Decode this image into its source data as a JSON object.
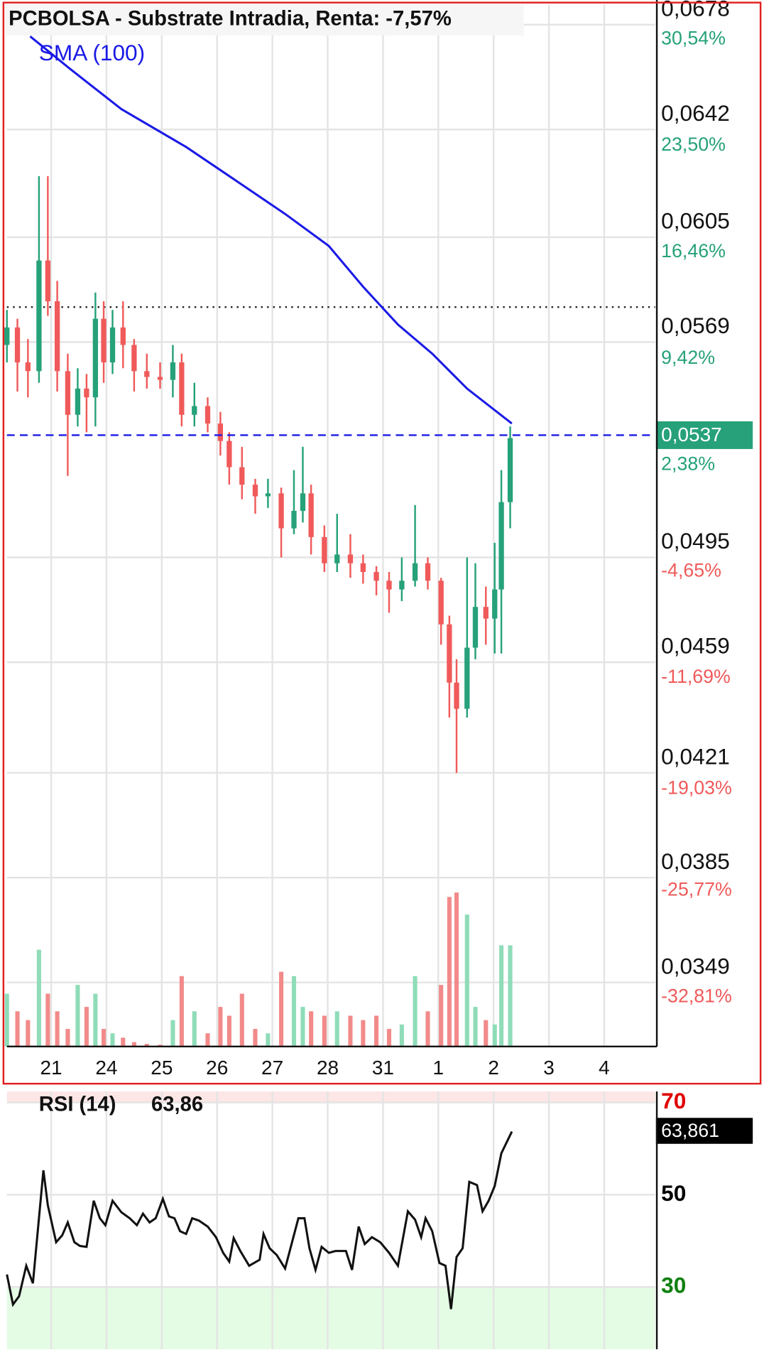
{
  "chart_data": [
    {
      "type": "candlestick",
      "title": "PCBOLSA - Substrate Intradia, Renta: -7,57%",
      "x": [
        -0.8,
        -0.61,
        -0.42,
        -0.22,
        -0.06,
        0.11,
        0.3,
        0.48,
        0.64,
        0.8,
        0.95,
        1.11,
        1.3,
        1.5,
        1.73,
        1.97,
        2.2,
        2.36,
        2.59,
        2.83,
        3.06,
        3.22,
        3.45,
        3.69,
        3.92,
        4.16,
        4.39,
        4.55,
        4.7,
        4.94,
        5.17,
        5.41,
        5.64,
        5.88,
        6.11,
        6.34,
        6.58,
        6.81,
        7.05,
        7.2,
        7.33,
        7.52,
        7.67,
        7.86,
        8.02,
        8.14,
        8.3
      ],
      "open": [
        0.0568,
        0.0574,
        0.0562,
        0.0559,
        0.0597,
        0.0583,
        0.0559,
        0.0544,
        0.0553,
        0.055,
        0.0577,
        0.0562,
        0.0574,
        0.0568,
        0.0559,
        0.0557,
        0.0556,
        0.0562,
        0.0544,
        0.0547,
        0.0541,
        0.0535,
        0.0526,
        0.052,
        0.0516,
        0.0517,
        0.0505,
        0.0511,
        0.0517,
        0.0502,
        0.0493,
        0.0496,
        0.0493,
        0.049,
        0.0487,
        0.0484,
        0.0487,
        0.0493,
        0.0487,
        0.0472,
        0.0452,
        0.0443,
        0.0464,
        0.0478,
        0.0474,
        0.0484,
        0.0514
      ],
      "high": [
        0.058,
        0.0577,
        0.057,
        0.0626,
        0.0626,
        0.059,
        0.0565,
        0.056,
        0.0558,
        0.0586,
        0.0583,
        0.058,
        0.0583,
        0.057,
        0.0565,
        0.0562,
        0.0568,
        0.0565,
        0.0555,
        0.055,
        0.0545,
        0.0538,
        0.0533,
        0.0522,
        0.0522,
        0.0519,
        0.0525,
        0.0533,
        0.052,
        0.0506,
        0.051,
        0.0503,
        0.0496,
        0.0492,
        0.049,
        0.0495,
        0.0513,
        0.0495,
        0.0488,
        0.0475,
        0.046,
        0.0495,
        0.0493,
        0.0485,
        0.05,
        0.0525,
        0.054
      ],
      "low": [
        0.0562,
        0.0552,
        0.055,
        0.0555,
        0.0578,
        0.0552,
        0.0523,
        0.054,
        0.0538,
        0.054,
        0.0555,
        0.0558,
        0.056,
        0.0552,
        0.0553,
        0.0553,
        0.055,
        0.054,
        0.054,
        0.0538,
        0.053,
        0.052,
        0.0515,
        0.051,
        0.0512,
        0.0495,
        0.0503,
        0.0507,
        0.0496,
        0.049,
        0.049,
        0.0488,
        0.0486,
        0.0482,
        0.0476,
        0.048,
        0.0485,
        0.0484,
        0.0465,
        0.044,
        0.0421,
        0.044,
        0.046,
        0.0465,
        0.0462,
        0.0462,
        0.0505
      ],
      "close": [
        0.0574,
        0.0562,
        0.0559,
        0.0597,
        0.0583,
        0.0559,
        0.0544,
        0.0553,
        0.055,
        0.0577,
        0.0562,
        0.0574,
        0.0568,
        0.0559,
        0.0557,
        0.0556,
        0.0562,
        0.0544,
        0.0547,
        0.0541,
        0.0535,
        0.0526,
        0.052,
        0.0516,
        0.0517,
        0.0505,
        0.0511,
        0.0517,
        0.0502,
        0.0493,
        0.0496,
        0.0493,
        0.049,
        0.0487,
        0.0484,
        0.0487,
        0.0493,
        0.0487,
        0.0472,
        0.0452,
        0.0443,
        0.0464,
        0.0478,
        0.0474,
        0.0484,
        0.0514,
        0.0536
      ],
      "volume": [
        60,
        40,
        30,
        110,
        60,
        40,
        20,
        70,
        45,
        60,
        20,
        15,
        10,
        5,
        3,
        2,
        30,
        80,
        40,
        15,
        45,
        35,
        60,
        20,
        15,
        85,
        80,
        45,
        40,
        35,
        40,
        35,
        30,
        35,
        20,
        25,
        80,
        40,
        70,
        170,
        175,
        150,
        45,
        30,
        25,
        115,
        115
      ],
      "up_color": "#26a17a",
      "down_color": "#f05a5a",
      "up_volume_color": "#8fdcb8",
      "down_volume_color": "#f28a8a",
      "sma": {
        "name": "SMA (100)",
        "color": "#1a1ae6",
        "x": [
          -0.38,
          0.33,
          1.27,
          2.44,
          3.22,
          4.23,
          5.02,
          5.64,
          6.27,
          6.89,
          7.52,
          8.33
        ],
        "values": [
          0.0674,
          0.0663,
          0.0649,
          0.0636,
          0.0626,
          0.0613,
          0.0602,
          0.0588,
          0.0575,
          0.0565,
          0.0553,
          0.0541
        ]
      },
      "xlim": [
        -0.8,
        10.92
      ],
      "xticks": [
        {
          "value": 0,
          "label": "21"
        },
        {
          "value": 1,
          "label": "24"
        },
        {
          "value": 2,
          "label": "25"
        },
        {
          "value": 3,
          "label": "26"
        },
        {
          "value": 4,
          "label": "27"
        },
        {
          "value": 5,
          "label": "28"
        },
        {
          "value": 6,
          "label": "31"
        },
        {
          "value": 7,
          "label": "1"
        },
        {
          "value": 8,
          "label": "2"
        },
        {
          "value": 9,
          "label": "3"
        },
        {
          "value": 10,
          "label": "4"
        }
      ],
      "ylim": [
        0.0327,
        0.0685
      ],
      "yticks": [
        {
          "value": 0.0678,
          "label": "0,0678"
        },
        {
          "value": 0.0642,
          "label": "0,0642"
        },
        {
          "value": 0.0605,
          "label": "0,0605"
        },
        {
          "value": 0.0569,
          "label": "0,0569"
        },
        {
          "value": 0.0495,
          "label": "0,0495"
        },
        {
          "value": 0.0459,
          "label": "0,0459"
        },
        {
          "value": 0.0421,
          "label": "0,0421"
        },
        {
          "value": 0.0385,
          "label": "0,0385"
        },
        {
          "value": 0.0349,
          "label": "0,0349"
        }
      ],
      "y2lim": [
        -37.04,
        31.88
      ],
      "y2ticks": [
        {
          "value": 30.54,
          "label": "30,54%"
        },
        {
          "value": 23.5,
          "label": "23,50%"
        },
        {
          "value": 16.46,
          "label": "16,46%"
        },
        {
          "value": 9.42,
          "label": "9,42%"
        },
        {
          "value": -4.65,
          "label": "-4,65%"
        },
        {
          "value": -11.69,
          "label": "-11,69%"
        },
        {
          "value": -19.03,
          "label": "-19,03%"
        },
        {
          "value": -25.77,
          "label": "-25,77%"
        },
        {
          "value": -32.81,
          "label": "-32,81%"
        }
      ],
      "current": {
        "value": 0.0537,
        "label": "0,0537",
        "change": 2.38,
        "change_label": "2,38%"
      },
      "reference_line": 0.0581,
      "grid": true
    },
    {
      "type": "line",
      "title": "RSI (14)",
      "color": "#111111",
      "x": [
        -0.8,
        -0.69,
        -0.58,
        -0.45,
        -0.33,
        -0.14,
        -0.06,
        0.09,
        0.2,
        0.3,
        0.42,
        0.52,
        0.64,
        0.77,
        0.88,
        0.98,
        1.11,
        1.27,
        1.42,
        1.55,
        1.66,
        1.78,
        1.89,
        2.02,
        2.13,
        2.23,
        2.33,
        2.44,
        2.55,
        2.67,
        2.83,
        2.98,
        3.11,
        3.22,
        3.3,
        3.42,
        3.58,
        3.77,
        3.84,
        3.95,
        4.08,
        4.23,
        4.47,
        4.58,
        4.67,
        4.78,
        4.89,
        5.02,
        5.14,
        5.33,
        5.44,
        5.56,
        5.67,
        5.8,
        5.95,
        6.11,
        6.27,
        6.45,
        6.58,
        6.69,
        6.77,
        6.89,
        7.02,
        7.13,
        7.23,
        7.33,
        7.44,
        7.56,
        7.7,
        7.8,
        7.91,
        8.02,
        8.14,
        8.33
      ],
      "values": [
        32.7,
        26.2,
        28.0,
        34.6,
        30.8,
        55.3,
        47.7,
        39.7,
        41.2,
        44.0,
        39.7,
        38.9,
        38.7,
        48.7,
        44.9,
        43.4,
        48.7,
        46.2,
        44.9,
        43.4,
        45.9,
        44.0,
        44.9,
        49.1,
        45.3,
        44.9,
        42.1,
        41.5,
        44.9,
        44.4,
        43.1,
        40.8,
        37.4,
        35.5,
        40.6,
        37.8,
        34.6,
        35.9,
        41.5,
        38.4,
        36.9,
        34.0,
        44.9,
        44.9,
        38.4,
        33.7,
        38.7,
        37.4,
        37.8,
        37.8,
        33.7,
        43.1,
        39.3,
        40.8,
        39.7,
        37.4,
        34.6,
        46.4,
        44.6,
        40.8,
        44.9,
        42.1,
        35.2,
        34.6,
        25.2,
        36.5,
        38.4,
        52.8,
        52.1,
        46.4,
        48.7,
        51.9,
        59.0,
        63.7
      ],
      "xlim": [
        -0.8,
        10.92
      ],
      "xticks": [
        0,
        1,
        2,
        3,
        4,
        5,
        6,
        7,
        8,
        9,
        10
      ],
      "ylim": [
        16.5,
        72.4
      ],
      "yticks": [
        70,
        50,
        30
      ],
      "ytick_colors": [
        "#e00000",
        "#000000",
        "#108010"
      ],
      "overbought": 70,
      "oversold": 30,
      "overbought_color": "#fde6e6",
      "oversold_color": "#e4fbe4",
      "last": {
        "value": 63.861,
        "label": "63,861",
        "header_label": "63,86"
      },
      "grid": true
    }
  ]
}
